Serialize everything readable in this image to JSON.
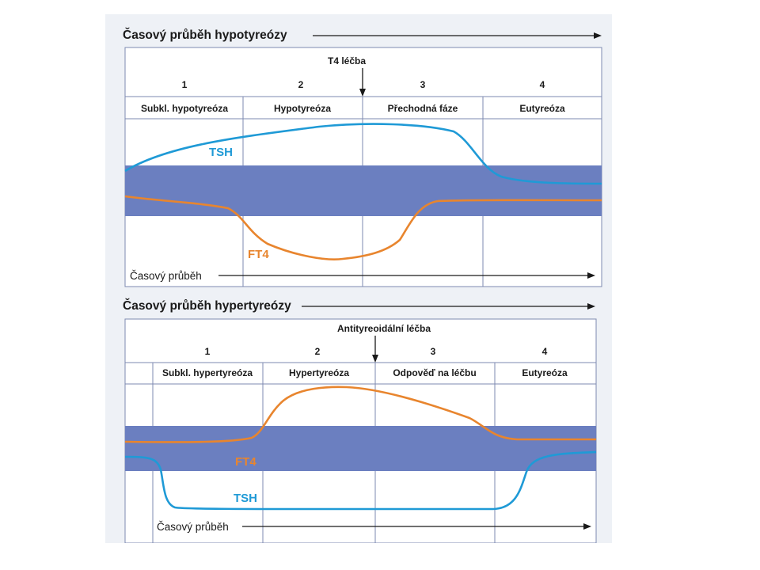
{
  "panels": [
    {
      "title": "Časový průběh hypotyreózy",
      "treatment_label": "T4 léčba",
      "stages": [
        {
          "number": "1",
          "label": "Subkl. hypotyreóza"
        },
        {
          "number": "2",
          "label": "Hypotyreóza"
        },
        {
          "number": "3",
          "label": "Přechodná fáze"
        },
        {
          "number": "4",
          "label": "Eutyreóza"
        }
      ],
      "curves": [
        {
          "name": "TSH",
          "color": "#1f9ad6"
        },
        {
          "name": "FT4",
          "color": "#e8852e"
        }
      ],
      "time_axis_label": "Časový průběh"
    },
    {
      "title": "Časový průběh hypertyreózy",
      "treatment_label": "Antityreoidální léčba",
      "stages": [
        {
          "number": "1",
          "label": "Subkl. hypertyreóza"
        },
        {
          "number": "2",
          "label": "Hypertyreóza"
        },
        {
          "number": "3",
          "label": "Odpověď na léčbu"
        },
        {
          "number": "4",
          "label": "Eutyreóza"
        }
      ],
      "curves": [
        {
          "name": "FT4",
          "color": "#e8852e"
        },
        {
          "name": "TSH",
          "color": "#1f9ad6"
        }
      ],
      "time_axis_label": "Časový průběh"
    }
  ],
  "colors": {
    "reference_band": "#6b7fc0",
    "grid": "#7e8ab0",
    "slide_background": "#eef1f6"
  }
}
